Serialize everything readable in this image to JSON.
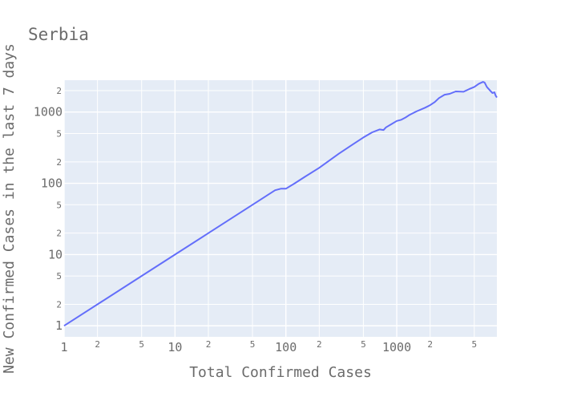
{
  "chart_data": {
    "type": "line",
    "title": "Serbia",
    "xlabel": "Total Confirmed Cases",
    "ylabel": "New Confirmed Cases in the last 7 days",
    "xscale": "log",
    "yscale": "log",
    "xlim": [
      1,
      8000
    ],
    "ylim": [
      0.7,
      2800
    ],
    "grid": true,
    "background": "#e5ecf6",
    "line_color": "#636efa",
    "x_major_ticks": [
      {
        "value": 1,
        "label": "1"
      },
      {
        "value": 10,
        "label": "10"
      },
      {
        "value": 100,
        "label": "100"
      },
      {
        "value": 1000,
        "label": "1000"
      }
    ],
    "x_minor_ticks": [
      {
        "value": 2,
        "label": "2"
      },
      {
        "value": 5,
        "label": "5"
      },
      {
        "value": 20,
        "label": "2"
      },
      {
        "value": 50,
        "label": "5"
      },
      {
        "value": 200,
        "label": "2"
      },
      {
        "value": 500,
        "label": "5"
      },
      {
        "value": 2000,
        "label": "2"
      },
      {
        "value": 5000,
        "label": "5"
      }
    ],
    "y_major_ticks": [
      {
        "value": 1,
        "label": "1"
      },
      {
        "value": 10,
        "label": "10"
      },
      {
        "value": 100,
        "label": "100"
      },
      {
        "value": 1000,
        "label": "1000"
      }
    ],
    "y_minor_ticks": [
      {
        "value": 2,
        "label": "2"
      },
      {
        "value": 5,
        "label": "5"
      },
      {
        "value": 20,
        "label": "2"
      },
      {
        "value": 50,
        "label": "5"
      },
      {
        "value": 200,
        "label": "2"
      },
      {
        "value": 500,
        "label": "5"
      },
      {
        "value": 2000,
        "label": "2"
      }
    ],
    "series": [
      {
        "x": [
          1,
          5,
          10,
          20,
          50,
          60,
          70,
          80,
          90,
          100,
          120,
          150,
          200,
          300,
          400,
          500,
          600,
          700,
          760,
          800,
          900,
          1000,
          1100,
          1200,
          1300,
          1500,
          1800,
          2000,
          2200,
          2400,
          2700,
          3000,
          3400,
          4000,
          4500,
          5000,
          5500,
          6000,
          6200,
          6500,
          7000,
          7300,
          7600,
          7800,
          8000
        ],
        "y": [
          1,
          5,
          10,
          20,
          50,
          60,
          70,
          80,
          84,
          84,
          100,
          125,
          165,
          260,
          350,
          440,
          520,
          570,
          560,
          610,
          680,
          750,
          780,
          840,
          910,
          1020,
          1150,
          1250,
          1380,
          1570,
          1750,
          1800,
          1950,
          1930,
          2100,
          2250,
          2500,
          2650,
          2600,
          2250,
          1980,
          1850,
          1900,
          1700,
          1600
        ]
      }
    ]
  }
}
